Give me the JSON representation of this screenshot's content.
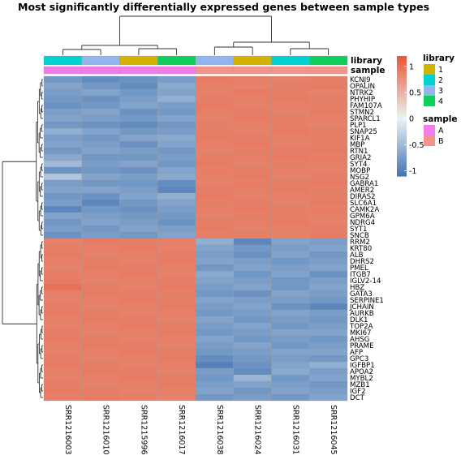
{
  "chart_data": {
    "type": "heatmap",
    "title": "Most significantly differentially expressed genes between sample types",
    "columns": [
      "SRR1216003",
      "SRR1216010",
      "SRR1215996",
      "SRR1216017",
      "SRR1216038",
      "SRR1216024",
      "SRR1216031",
      "SRR1216045"
    ],
    "rows": [
      "KCNJ9",
      "OPALIN",
      "NTRK2",
      "PHYHIP",
      "FAM107A",
      "STMN2",
      "SPARCL1",
      "PLP1",
      "SNAP25",
      "KIF1A",
      "MBP",
      "RTN1",
      "GRIA2",
      "SYT4",
      "MOBP",
      "NSG2",
      "GABRA1",
      "AMER2",
      "DIRAS2",
      "SLC6A1",
      "CAMK2A",
      "GPM6A",
      "NDRG4",
      "SYT1",
      "SNCB",
      "RRM2",
      "KRT80",
      "ALB",
      "DHRS2",
      "PMEL",
      "ITGB7",
      "IGLV2-14",
      "HBZ",
      "GATA3",
      "SERPINE1",
      "JCHAIN",
      "AURKB",
      "DLK1",
      "TOP2A",
      "MKI67",
      "AHSG",
      "PRAME",
      "AFP",
      "GPC3",
      "IGFBP1",
      "APOA2",
      "MYBL2",
      "MZB1",
      "IGF2",
      "DCT"
    ],
    "annotations": {
      "library": {
        "label": "library",
        "values": [
          "2",
          "3",
          "1",
          "4",
          "3",
          "1",
          "2",
          "4"
        ]
      },
      "sample": {
        "label": "sample",
        "values": [
          "A",
          "A",
          "A",
          "A",
          "B",
          "B",
          "B",
          "B"
        ]
      }
    },
    "annotation_legends": [
      {
        "title": "library",
        "items": [
          {
            "label": "1",
            "color": "#D4B200"
          },
          {
            "label": "2",
            "color": "#00D1D1"
          },
          {
            "label": "3",
            "color": "#91B5EC"
          },
          {
            "label": "4",
            "color": "#10CE5C"
          }
        ]
      },
      {
        "title": "sample",
        "items": [
          {
            "label": "A",
            "color": "#F27DEA"
          },
          {
            "label": "B",
            "color": "#F2948C"
          }
        ]
      }
    ],
    "colorbar": {
      "min": -1.1,
      "max": 1.2,
      "ticks": [
        1,
        0.5,
        0,
        -0.5,
        -1
      ],
      "tick_labels": [
        "1",
        "0.5",
        "0",
        "-0.5",
        "-1"
      ]
    },
    "values": [
      [
        -0.8,
        -0.9,
        -0.85,
        -0.75,
        0.92,
        0.9,
        0.88,
        0.9
      ],
      [
        -0.7,
        -0.8,
        -0.9,
        -0.65,
        0.9,
        0.88,
        0.9,
        0.92
      ],
      [
        -0.75,
        -0.7,
        -0.8,
        -0.7,
        0.88,
        0.92,
        0.9,
        0.88
      ],
      [
        -0.8,
        -0.85,
        -0.75,
        -0.6,
        0.9,
        0.9,
        0.92,
        0.9
      ],
      [
        -0.85,
        -0.8,
        -0.7,
        -0.75,
        0.92,
        0.88,
        0.9,
        0.9
      ],
      [
        -0.75,
        -0.7,
        -0.85,
        -0.8,
        0.9,
        0.9,
        0.88,
        0.92
      ],
      [
        -0.7,
        -0.75,
        -0.8,
        -0.7,
        0.88,
        0.92,
        0.9,
        0.9
      ],
      [
        -0.8,
        -0.85,
        -0.9,
        -0.8,
        0.9,
        0.9,
        0.9,
        0.88
      ],
      [
        -0.6,
        -0.7,
        -0.8,
        -0.75,
        0.9,
        0.88,
        0.92,
        0.9
      ],
      [
        -0.75,
        -0.8,
        -0.7,
        -0.65,
        0.92,
        0.9,
        0.9,
        0.9
      ],
      [
        -0.7,
        -0.75,
        -0.85,
        -0.7,
        0.9,
        0.92,
        0.88,
        0.9
      ],
      [
        -0.8,
        -0.7,
        -0.75,
        -0.8,
        0.88,
        0.9,
        0.9,
        0.92
      ],
      [
        -0.65,
        -0.8,
        -0.8,
        -0.75,
        0.9,
        0.9,
        0.92,
        0.9
      ],
      [
        -0.5,
        -0.75,
        -0.7,
        -0.8,
        0.92,
        0.88,
        0.9,
        0.9
      ],
      [
        -0.85,
        -0.8,
        -0.85,
        -0.7,
        0.9,
        0.9,
        0.9,
        0.88
      ],
      [
        -0.4,
        -0.7,
        -0.75,
        -0.65,
        0.9,
        0.92,
        0.88,
        0.9
      ],
      [
        -0.75,
        -0.8,
        -0.8,
        -0.9,
        0.88,
        0.9,
        0.9,
        0.92
      ],
      [
        -0.7,
        -0.7,
        -0.75,
        -0.95,
        0.9,
        0.9,
        0.92,
        0.9
      ],
      [
        -0.8,
        -0.85,
        -0.7,
        -0.6,
        0.92,
        0.88,
        0.9,
        0.9
      ],
      [
        -0.75,
        -0.95,
        -0.8,
        -0.7,
        0.9,
        0.9,
        0.88,
        0.92
      ],
      [
        -0.95,
        -0.8,
        -0.85,
        -0.75,
        0.9,
        0.92,
        0.9,
        0.9
      ],
      [
        -0.7,
        -0.75,
        -0.8,
        -0.8,
        0.88,
        0.9,
        0.9,
        0.9
      ],
      [
        -0.8,
        -0.7,
        -0.75,
        -0.85,
        0.9,
        0.9,
        0.92,
        0.88
      ],
      [
        -0.75,
        -0.8,
        -0.7,
        -0.75,
        0.92,
        0.88,
        0.9,
        0.9
      ],
      [
        -0.85,
        -0.75,
        -0.8,
        -0.7,
        0.9,
        0.9,
        0.88,
        0.92
      ],
      [
        0.88,
        0.92,
        0.9,
        0.9,
        -0.6,
        -0.95,
        -0.7,
        -0.75
      ],
      [
        0.9,
        0.9,
        0.92,
        0.88,
        -0.7,
        -0.8,
        -0.75,
        -0.7
      ],
      [
        0.92,
        0.88,
        0.9,
        0.9,
        -0.75,
        -0.85,
        -0.7,
        -0.8
      ],
      [
        0.9,
        0.9,
        0.88,
        0.92,
        -0.7,
        -0.75,
        -0.8,
        -0.75
      ],
      [
        0.88,
        0.92,
        0.9,
        0.9,
        -0.8,
        -0.7,
        -0.75,
        -0.7
      ],
      [
        0.9,
        0.9,
        0.92,
        0.88,
        -0.65,
        -0.8,
        -0.7,
        -0.85
      ],
      [
        0.92,
        0.88,
        0.9,
        0.9,
        -0.7,
        -0.75,
        -0.8,
        -0.75
      ],
      [
        1.0,
        0.9,
        0.88,
        0.92,
        -0.75,
        -0.7,
        -0.8,
        -0.7
      ],
      [
        0.9,
        0.92,
        0.9,
        0.9,
        -0.8,
        -0.85,
        -0.7,
        -0.75
      ],
      [
        0.88,
        0.9,
        0.92,
        0.9,
        -0.7,
        -0.75,
        -0.75,
        -0.8
      ],
      [
        0.9,
        0.88,
        0.9,
        0.92,
        -0.75,
        -0.7,
        -0.85,
        -0.95
      ],
      [
        0.92,
        0.9,
        0.88,
        0.9,
        -0.8,
        -0.75,
        -0.7,
        -0.75
      ],
      [
        0.9,
        0.92,
        0.9,
        0.88,
        -0.7,
        -0.8,
        -0.75,
        -0.8
      ],
      [
        0.88,
        0.9,
        0.92,
        0.9,
        -0.75,
        -0.7,
        -0.8,
        -0.75
      ],
      [
        0.9,
        0.88,
        0.9,
        0.92,
        -0.8,
        -0.75,
        -0.7,
        -0.7
      ],
      [
        0.92,
        0.9,
        0.88,
        0.9,
        -0.7,
        -0.8,
        -0.75,
        -0.8
      ],
      [
        0.9,
        0.92,
        0.9,
        0.88,
        -0.75,
        -0.7,
        -0.8,
        -0.75
      ],
      [
        0.88,
        0.9,
        0.92,
        0.9,
        -0.8,
        -0.75,
        -0.7,
        -0.7
      ],
      [
        0.9,
        0.88,
        0.9,
        0.92,
        -0.9,
        -0.8,
        -0.75,
        -0.8
      ],
      [
        0.92,
        0.9,
        0.88,
        0.9,
        -1.0,
        -0.85,
        -0.7,
        -0.6
      ],
      [
        0.9,
        0.92,
        0.9,
        0.88,
        -0.75,
        -0.9,
        -0.65,
        -0.75
      ],
      [
        0.88,
        0.9,
        0.92,
        0.9,
        -0.8,
        -0.55,
        -0.8,
        -0.7
      ],
      [
        0.9,
        0.88,
        0.9,
        0.92,
        -0.75,
        -0.7,
        -0.75,
        -0.8
      ],
      [
        0.92,
        0.9,
        0.88,
        0.9,
        -0.7,
        -0.8,
        -0.7,
        -0.75
      ],
      [
        0.9,
        0.92,
        0.9,
        0.88,
        -0.8,
        -0.75,
        -0.8,
        -0.7
      ]
    ]
  }
}
